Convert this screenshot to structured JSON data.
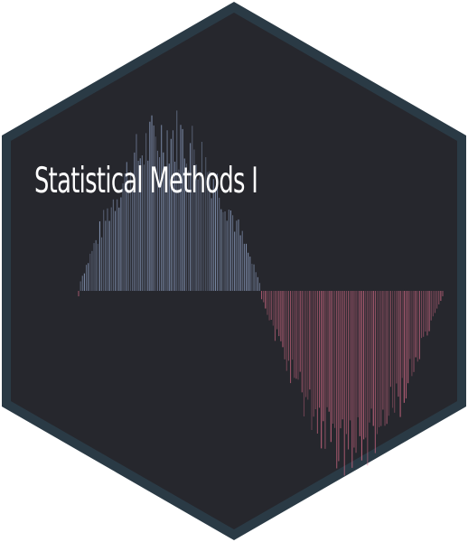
{
  "logo": {
    "title": "Statistical Methods I"
  },
  "colors": {
    "hex_fill": "#26272d",
    "hex_border": "#2a3a45",
    "bars_positive": "#8fa1c4",
    "bars_negative": "#d26a85",
    "title_text": "#ffffff"
  },
  "wave": {
    "shape": "sine",
    "cycles": 1,
    "bar_count": 190
  }
}
